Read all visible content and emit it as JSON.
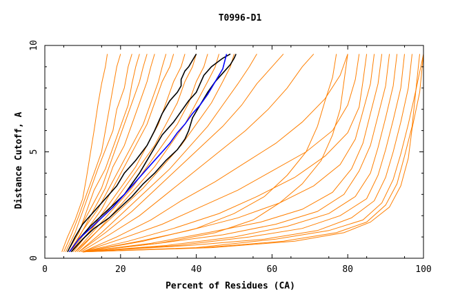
{
  "chart_data": {
    "type": "line",
    "title": "T0996-D1",
    "xlabel": "Percent of Residues (CA)",
    "ylabel": "Distance Cutoff, A",
    "xlim": [
      0,
      100
    ],
    "ylim": [
      0,
      10
    ],
    "x_ticks": [
      0,
      20,
      40,
      60,
      80,
      100
    ],
    "y_ticks": [
      0,
      5,
      10
    ],
    "grid": false,
    "colors": {
      "background": "#ffffff",
      "axes": "#000000",
      "orange": "#ff7f00",
      "black": "#000000",
      "blue": "#0000ff"
    },
    "series": [
      {
        "color": "orange",
        "x": [
          4.5,
          6,
          8,
          10,
          11,
          12,
          13,
          14,
          15,
          16,
          16.5
        ],
        "y": [
          0.3,
          1.0,
          1.8,
          2.8,
          3.8,
          4.9,
          6.0,
          7.2,
          8.2,
          9.0,
          9.6
        ]
      },
      {
        "color": "orange",
        "x": [
          5,
          7,
          9,
          11,
          13,
          15,
          16,
          17,
          18,
          19,
          20
        ],
        "y": [
          0.3,
          1.1,
          2.0,
          3.0,
          4.0,
          5.0,
          6.0,
          7.0,
          8.0,
          9.0,
          9.6
        ]
      },
      {
        "color": "orange",
        "x": [
          5.5,
          8,
          10,
          12,
          14,
          16,
          18,
          19,
          21,
          22,
          23
        ],
        "y": [
          0.3,
          1.2,
          2.2,
          3.2,
          4.2,
          5.1,
          6.0,
          7.0,
          8.0,
          9.0,
          9.6
        ]
      },
      {
        "color": "orange",
        "x": [
          6,
          9,
          11,
          13,
          16,
          18,
          20,
          22,
          23,
          24,
          25
        ],
        "y": [
          0.3,
          1.2,
          2.2,
          3.2,
          4.2,
          5.2,
          6.2,
          7.2,
          8.2,
          9.0,
          9.6
        ]
      },
      {
        "color": "orange",
        "x": [
          6,
          9,
          12,
          15,
          17,
          19,
          21,
          23,
          25,
          26,
          27
        ],
        "y": [
          0.3,
          1.3,
          2.3,
          3.3,
          4.3,
          5.3,
          6.3,
          7.3,
          8.3,
          9.0,
          9.6
        ]
      },
      {
        "color": "orange",
        "x": [
          6.5,
          10,
          13,
          16,
          18,
          21,
          23,
          25,
          27,
          28,
          29
        ],
        "y": [
          0.3,
          1.3,
          2.3,
          3.3,
          4.3,
          5.3,
          6.3,
          7.3,
          8.3,
          9.0,
          9.6
        ]
      },
      {
        "color": "orange",
        "x": [
          7,
          10,
          14,
          17,
          20,
          23,
          26,
          28,
          30,
          31,
          32
        ],
        "y": [
          0.3,
          1.3,
          2.3,
          3.3,
          4.3,
          5.3,
          6.3,
          7.3,
          8.3,
          9.0,
          9.6
        ]
      },
      {
        "color": "orange",
        "x": [
          7,
          11,
          15,
          18,
          21,
          24,
          27,
          29,
          31,
          33,
          34
        ],
        "y": [
          0.3,
          1.3,
          2.3,
          3.3,
          4.3,
          5.3,
          6.3,
          7.3,
          8.3,
          9.0,
          9.6
        ]
      },
      {
        "color": "orange",
        "x": [
          7,
          12,
          16,
          20,
          24,
          27,
          30,
          32,
          34,
          36,
          37
        ],
        "y": [
          0.3,
          1.3,
          2.3,
          3.3,
          4.3,
          5.3,
          6.3,
          7.3,
          8.3,
          9.0,
          9.6
        ]
      },
      {
        "color": "orange",
        "x": [
          7.5,
          12,
          17,
          21,
          25,
          29,
          32,
          35,
          37,
          39,
          40
        ],
        "y": [
          0.3,
          1.3,
          2.3,
          3.3,
          4.3,
          5.3,
          6.3,
          7.3,
          8.3,
          9.0,
          9.6
        ]
      },
      {
        "color": "orange",
        "x": [
          8,
          13,
          18,
          23,
          27,
          31,
          35,
          38,
          40,
          42,
          43
        ],
        "y": [
          0.3,
          1.3,
          2.3,
          3.3,
          4.3,
          5.3,
          6.3,
          7.3,
          8.3,
          9.0,
          9.6
        ]
      },
      {
        "color": "orange",
        "x": [
          8,
          14,
          19,
          24,
          29,
          33,
          37,
          40,
          43,
          45,
          46
        ],
        "y": [
          0.3,
          1.3,
          2.3,
          3.3,
          4.3,
          5.3,
          6.3,
          7.3,
          8.3,
          9.0,
          9.6
        ]
      },
      {
        "color": "orange",
        "x": [
          8.5,
          14,
          20,
          26,
          31,
          36,
          40,
          44,
          47,
          49,
          50
        ],
        "y": [
          0.3,
          1.3,
          2.3,
          3.3,
          4.3,
          5.3,
          6.3,
          7.3,
          8.3,
          9.0,
          9.6
        ]
      },
      {
        "color": "orange",
        "x": [
          9,
          15,
          21,
          27,
          33,
          38,
          43,
          47,
          51,
          54,
          56
        ],
        "y": [
          0.3,
          1.2,
          2.2,
          3.2,
          4.2,
          5.2,
          6.2,
          7.2,
          8.2,
          9.0,
          9.6
        ]
      },
      {
        "color": "orange",
        "x": [
          9,
          16,
          23,
          29,
          35,
          41,
          47,
          52,
          56,
          60,
          63
        ],
        "y": [
          0.3,
          1.2,
          2.2,
          3.2,
          4.2,
          5.2,
          6.2,
          7.2,
          8.2,
          9.0,
          9.6
        ]
      },
      {
        "color": "orange",
        "x": [
          9.5,
          17,
          25,
          32,
          39,
          46,
          53,
          59,
          64,
          68,
          71
        ],
        "y": [
          0.3,
          1.1,
          2.0,
          3.0,
          4.0,
          5.0,
          6.0,
          7.0,
          8.0,
          9.0,
          9.6
        ]
      },
      {
        "color": "orange",
        "x": [
          10,
          19,
          28,
          36,
          45,
          53,
          61,
          68,
          74,
          78,
          80
        ],
        "y": [
          0.3,
          1.0,
          1.8,
          2.7,
          3.6,
          4.5,
          5.4,
          6.4,
          7.5,
          8.6,
          9.6
        ]
      },
      {
        "color": "orange",
        "x": [
          10,
          20,
          31,
          41,
          51,
          60,
          69,
          76,
          80,
          82,
          83
        ],
        "y": [
          0.3,
          0.9,
          1.6,
          2.4,
          3.2,
          4.1,
          5.0,
          6.0,
          7.2,
          8.4,
          9.6
        ]
      },
      {
        "color": "orange",
        "x": [
          10,
          22,
          34,
          46,
          56,
          66,
          74,
          80,
          83,
          84,
          85
        ],
        "y": [
          0.3,
          0.8,
          1.4,
          2.1,
          2.9,
          3.8,
          4.8,
          5.9,
          7.1,
          8.3,
          9.6
        ]
      },
      {
        "color": "orange",
        "x": [
          10,
          25,
          38,
          51,
          62,
          71,
          78,
          82,
          84,
          86,
          87
        ],
        "y": [
          0.3,
          0.8,
          1.3,
          1.9,
          2.6,
          3.4,
          4.4,
          5.6,
          6.9,
          8.2,
          9.6
        ]
      },
      {
        "color": "orange",
        "x": [
          10,
          28,
          43,
          57,
          68,
          76,
          81,
          84,
          86,
          88,
          89
        ],
        "y": [
          0.3,
          0.7,
          1.2,
          1.7,
          2.3,
          3.1,
          4.2,
          5.4,
          6.8,
          8.2,
          9.6
        ]
      },
      {
        "color": "orange",
        "x": [
          10,
          30,
          47,
          61,
          72,
          79,
          83,
          86,
          88,
          90,
          91
        ],
        "y": [
          0.3,
          0.7,
          1.1,
          1.6,
          2.2,
          3.0,
          4.1,
          5.3,
          6.7,
          8.1,
          9.6
        ]
      },
      {
        "color": "orange",
        "x": [
          10,
          32,
          50,
          64,
          75,
          82,
          86,
          88,
          90,
          92,
          93
        ],
        "y": [
          0.3,
          0.6,
          1.0,
          1.5,
          2.1,
          2.9,
          4.0,
          5.2,
          6.6,
          8.1,
          9.6
        ]
      },
      {
        "color": "orange",
        "x": [
          10,
          35,
          54,
          68,
          78,
          85,
          88,
          90,
          92,
          94,
          95
        ],
        "y": [
          0.3,
          0.6,
          1.0,
          1.4,
          2.0,
          2.8,
          3.9,
          5.1,
          6.5,
          8.0,
          9.6
        ]
      },
      {
        "color": "orange",
        "x": [
          10,
          38,
          58,
          72,
          81,
          87,
          90,
          92,
          94,
          96,
          97
        ],
        "y": [
          0.3,
          0.6,
          0.9,
          1.3,
          1.9,
          2.7,
          3.8,
          5.0,
          6.4,
          8.0,
          9.6
        ]
      },
      {
        "color": "orange",
        "x": [
          10,
          40,
          61,
          75,
          84,
          89,
          92,
          94,
          96,
          98,
          99
        ],
        "y": [
          0.3,
          0.5,
          0.9,
          1.3,
          1.8,
          2.6,
          3.7,
          4.9,
          6.3,
          7.9,
          9.6
        ]
      },
      {
        "color": "orange",
        "x": [
          10,
          42,
          63,
          77,
          85,
          90,
          93,
          95,
          97,
          98,
          100
        ],
        "y": [
          0.3,
          0.5,
          0.8,
          1.2,
          1.7,
          2.5,
          3.5,
          4.8,
          6.2,
          7.9,
          9.6
        ]
      },
      {
        "color": "orange",
        "x": [
          10,
          44,
          66,
          79,
          86,
          91,
          94,
          96,
          97,
          99,
          100
        ],
        "y": [
          0.3,
          0.5,
          0.8,
          1.2,
          1.7,
          2.4,
          3.4,
          4.7,
          6.1,
          7.8,
          9.6
        ]
      },
      {
        "color": "orange",
        "x": [
          10,
          30,
          45,
          55,
          62,
          68,
          73,
          76,
          78,
          79,
          80
        ],
        "y": [
          0.3,
          0.7,
          1.2,
          1.8,
          2.6,
          3.5,
          4.6,
          5.8,
          7.0,
          8.3,
          9.6
        ]
      },
      {
        "color": "orange",
        "x": [
          10,
          26,
          40,
          50,
          58,
          64,
          69,
          72,
          74,
          76,
          77
        ],
        "y": [
          0.3,
          0.8,
          1.4,
          2.1,
          2.9,
          3.9,
          5.0,
          6.2,
          7.4,
          8.5,
          9.6
        ]
      },
      {
        "color": "black",
        "x": [
          6,
          8,
          10,
          13,
          16,
          19,
          21,
          24,
          27,
          29,
          31,
          33,
          35,
          36,
          36,
          37,
          38,
          39,
          40
        ],
        "y": [
          0.3,
          1.0,
          1.6,
          2.2,
          2.8,
          3.4,
          4.0,
          4.6,
          5.3,
          6.0,
          6.8,
          7.4,
          7.8,
          8.1,
          8.4,
          8.8,
          9.0,
          9.3,
          9.6
        ]
      },
      {
        "color": "black",
        "x": [
          6.5,
          9,
          12,
          15,
          18,
          21,
          23,
          25,
          27,
          29,
          31,
          34,
          36,
          38,
          40,
          41,
          42,
          44,
          47,
          49
        ],
        "y": [
          0.3,
          0.9,
          1.5,
          2.0,
          2.5,
          3.0,
          3.5,
          4.0,
          4.6,
          5.2,
          5.8,
          6.4,
          6.9,
          7.4,
          7.8,
          8.2,
          8.6,
          9.0,
          9.4,
          9.6
        ]
      },
      {
        "color": "black",
        "x": [
          7,
          10,
          13,
          17,
          20,
          23,
          26,
          29,
          32,
          35,
          37,
          38,
          39,
          41,
          43,
          45,
          47,
          49,
          50,
          50.5
        ],
        "y": [
          0.3,
          0.9,
          1.4,
          1.9,
          2.4,
          2.9,
          3.5,
          4.0,
          4.6,
          5.1,
          5.6,
          6.0,
          6.6,
          7.2,
          7.8,
          8.3,
          8.7,
          9.1,
          9.4,
          9.6
        ]
      },
      {
        "color": "blue",
        "x": [
          6.5,
          9,
          12,
          15,
          18,
          21,
          24,
          27,
          30,
          33,
          35,
          37,
          39,
          41,
          43,
          45,
          47,
          48
        ],
        "y": [
          0.3,
          0.9,
          1.4,
          1.9,
          2.4,
          3.0,
          3.6,
          4.2,
          4.8,
          5.4,
          5.9,
          6.3,
          6.8,
          7.2,
          7.7,
          8.3,
          8.9,
          9.6
        ]
      }
    ]
  }
}
